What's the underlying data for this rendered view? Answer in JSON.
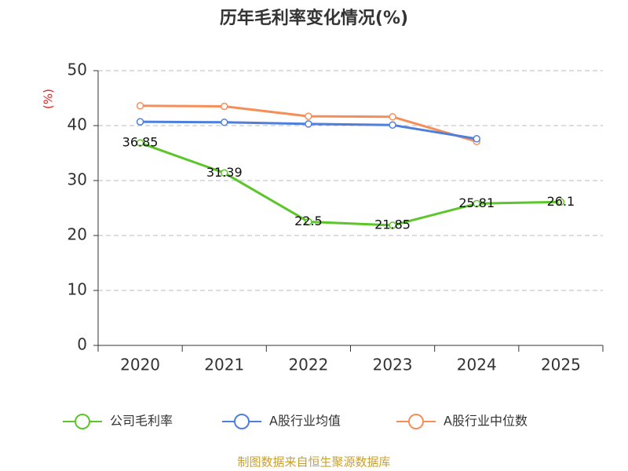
{
  "chart_data": {
    "type": "line",
    "title": "历年毛利率变化情况(%)",
    "y_label": "(%)",
    "categories": [
      "2020",
      "2021",
      "2022",
      "2023",
      "2024",
      "2025"
    ],
    "series": [
      {
        "name": "公司毛利率",
        "color": "#5cc52a",
        "values": [
          36.85,
          31.39,
          22.5,
          21.85,
          25.81,
          26.1
        ],
        "show_labels": true
      },
      {
        "name": "A股行业均值",
        "color": "#4e7fdc",
        "values": [
          40.7,
          40.6,
          40.3,
          40.1,
          37.6,
          null
        ],
        "show_labels": false
      },
      {
        "name": "A股行业中位数",
        "color": "#f58f5a",
        "values": [
          43.6,
          43.5,
          41.7,
          41.6,
          37.1,
          null
        ],
        "show_labels": false
      }
    ],
    "ylim": [
      0,
      50
    ],
    "yticks": [
      0,
      10,
      20,
      30,
      40,
      50
    ],
    "grid": true,
    "legend": "bottom",
    "source": "制图数据来自恒生聚源数据库"
  }
}
